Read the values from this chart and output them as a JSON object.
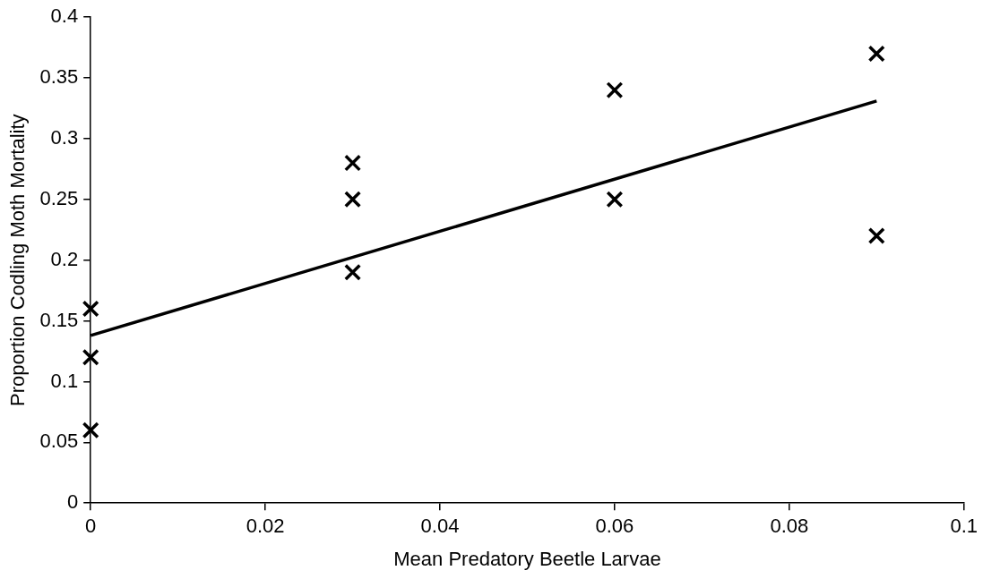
{
  "chart_data": {
    "type": "scatter",
    "xlabel": "Mean Predatory Beetle Larvae",
    "ylabel": "Proportion Codling Moth Mortality",
    "series": [
      {
        "color": "#000000",
        "marker": "cross",
        "x": [
          0,
          0,
          0,
          0.03,
          0.03,
          0.03,
          0.06,
          0.06,
          0.09,
          0.09
        ],
        "values": [
          0.16,
          0.12,
          0.06,
          0.28,
          0.25,
          0.19,
          0.34,
          0.25,
          0.37,
          0.22
        ]
      },
      {
        "type": "line",
        "color": "#000000",
        "marker": "none",
        "line_style": "solid",
        "x": [
          0,
          0.09
        ],
        "values": [
          0.138,
          0.331
        ]
      }
    ],
    "xlim": [
      0,
      0.1
    ],
    "xticks": [
      0,
      0.02,
      0.04,
      0.06,
      0.08,
      0.1
    ],
    "ylim": [
      0,
      0.4
    ],
    "yticks": [
      0,
      0.05,
      0.1,
      0.15,
      0.2,
      0.25,
      0.3,
      0.35,
      0.4
    ],
    "grid": false,
    "legend": false
  }
}
